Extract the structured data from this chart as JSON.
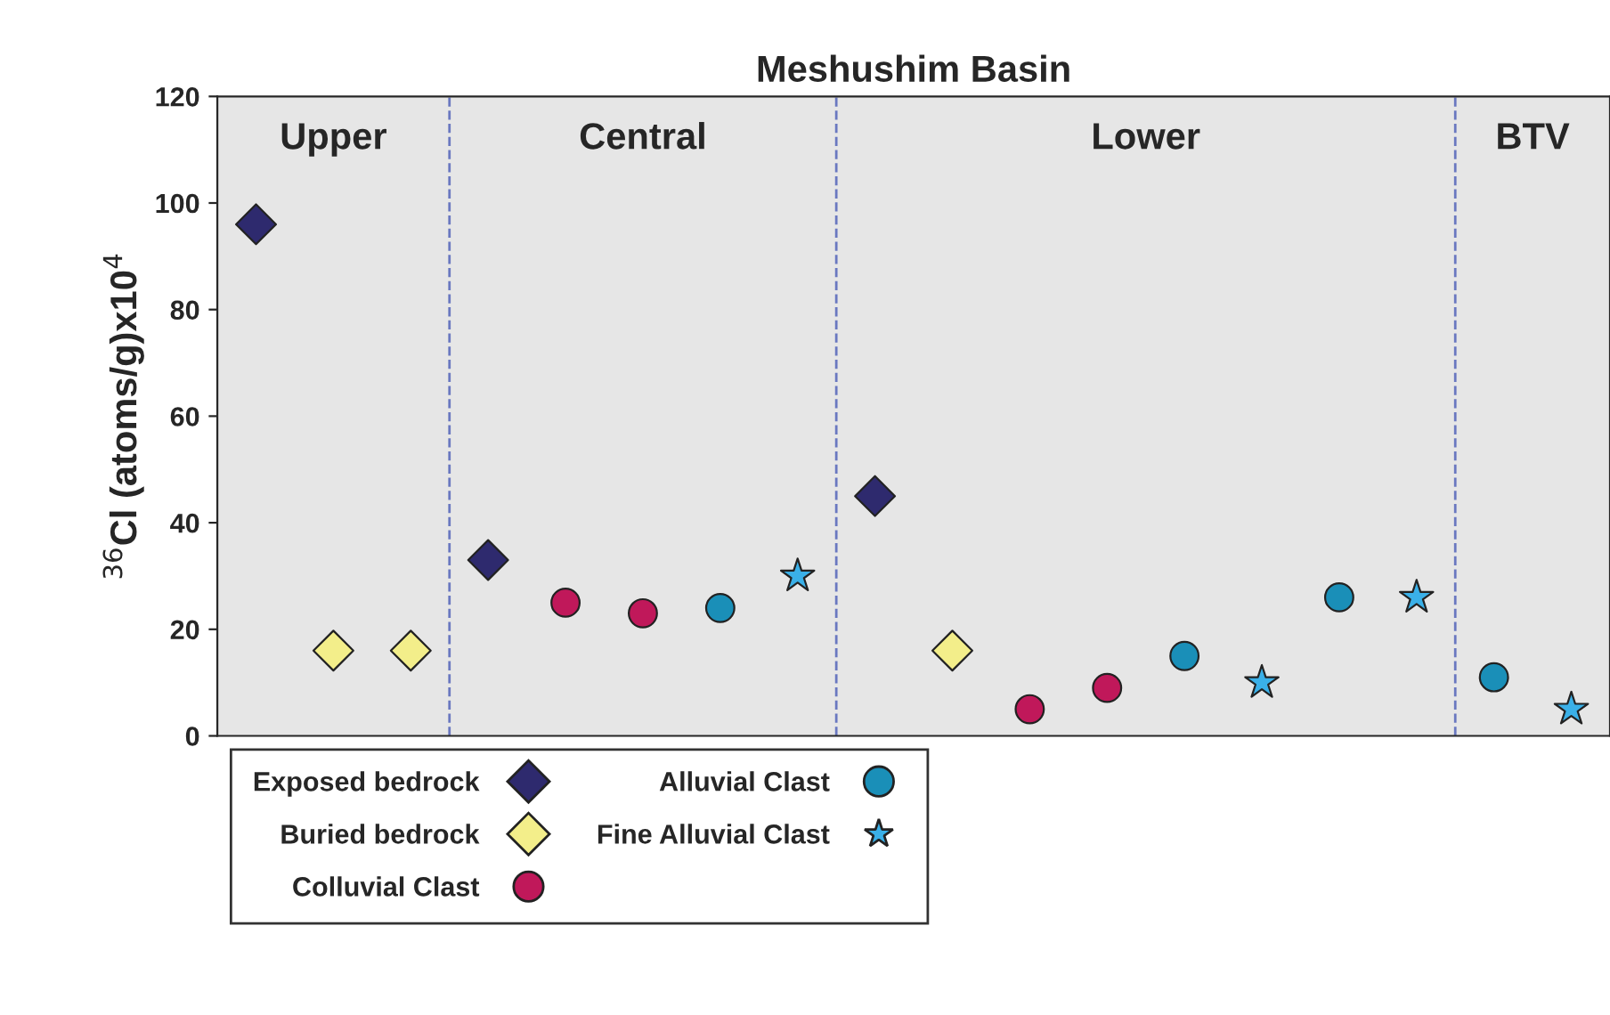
{
  "chart_data": {
    "type": "scatter",
    "title": "Meshushim Basin",
    "ylabel": "$^{36}$Cl (atoms/g)x10$^{4}$",
    "annotations": [
      "Upper",
      "Central",
      "Lower",
      "BTV"
    ],
    "categories": [
      null,
      null,
      null,
      null,
      null,
      null,
      null,
      null,
      null,
      null,
      null,
      null,
      null,
      null,
      null,
      null,
      null,
      null
    ],
    "ylim": [
      0,
      120
    ],
    "yticks": [
      0,
      20,
      40,
      60,
      80,
      100,
      120
    ],
    "tick_labels": "y",
    "grid": false,
    "legend": "bottom left",
    "series": [
      {
        "name": "Exposed bedrock",
        "color": "#2e2a6e",
        "marker": "diamond",
        "values": [
          96,
          null,
          null,
          33,
          null,
          null,
          null,
          null,
          45,
          null,
          null,
          null,
          null,
          null,
          null,
          null,
          null,
          null
        ]
      },
      {
        "name": "Buried bedrock",
        "color": "#f3ee8a",
        "marker": "diamond",
        "values": [
          null,
          16,
          16,
          null,
          null,
          null,
          null,
          null,
          null,
          16,
          null,
          null,
          null,
          null,
          null,
          null,
          null,
          null
        ]
      },
      {
        "name": "Colluvial Clast",
        "color": "#c0185a",
        "marker": "circle",
        "values": [
          null,
          null,
          null,
          null,
          25,
          23,
          null,
          null,
          null,
          null,
          5,
          9,
          null,
          null,
          null,
          null,
          null,
          null
        ]
      },
      {
        "name": "Alluvial Clast",
        "color": "#1a8fb8",
        "marker": "circle",
        "values": [
          null,
          null,
          null,
          null,
          null,
          null,
          24,
          null,
          null,
          null,
          null,
          null,
          15,
          null,
          26,
          null,
          11,
          null
        ]
      },
      {
        "name": "Fine Alluvial Clast",
        "color": "#3ab0e8",
        "marker": "star",
        "values": [
          null,
          null,
          null,
          null,
          null,
          null,
          null,
          30,
          null,
          null,
          null,
          null,
          null,
          10,
          null,
          26,
          null,
          5
        ]
      }
    ]
  }
}
